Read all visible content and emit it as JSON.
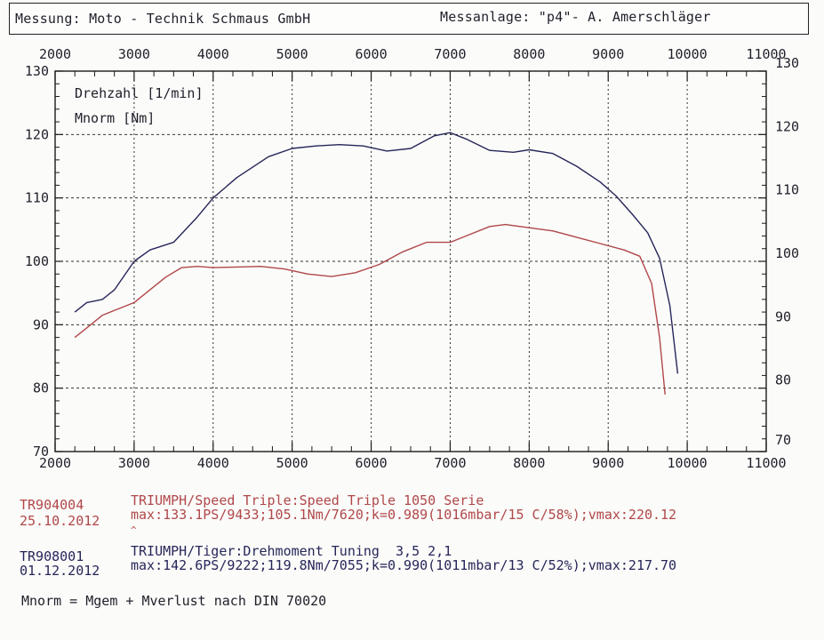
{
  "header": {
    "left": "Messung: Moto - Technik Schmaus GmbH",
    "right": "Messanlage: \"p4\"- A. Amerschläger"
  },
  "chart_data": {
    "type": "line",
    "legend": [
      "Drehzahl [1/min]",
      "Mnorm [Nm]"
    ],
    "legend_placement": "top-left",
    "grid": true,
    "xlim": [
      2000,
      11000
    ],
    "ylim": [
      70,
      130
    ],
    "x_ticks": [
      "2000",
      "3000",
      "4000",
      "5000",
      "6000",
      "7000",
      "8000",
      "9000",
      "10000",
      "11000"
    ],
    "y_left_ticks": [
      "70",
      "80",
      "90",
      "100",
      "110",
      "120",
      "130"
    ],
    "y_right_ticks": [
      "70",
      "80",
      "90",
      "100",
      "110",
      "120",
      "130"
    ],
    "series": [
      {
        "name": "TR908001",
        "color": "#26265a",
        "x": [
          2250,
          2400,
          2600,
          2750,
          3000,
          3200,
          3500,
          3800,
          4000,
          4300,
          4700,
          5000,
          5300,
          5600,
          5900,
          6200,
          6500,
          6800,
          7000,
          7200,
          7500,
          7800,
          8000,
          8300,
          8600,
          8900,
          9100,
          9300,
          9500,
          9650,
          9780,
          9880
        ],
        "y": [
          92,
          93.5,
          94,
          95.5,
          100,
          101.8,
          103,
          107,
          110,
          113.2,
          116.5,
          117.8,
          118.2,
          118.4,
          118.2,
          117.4,
          117.8,
          119.8,
          120.3,
          119.3,
          117.5,
          117.2,
          117.6,
          117,
          115,
          112.5,
          110.3,
          107.5,
          104.5,
          100.5,
          93,
          82.3
        ]
      },
      {
        "name": "TR904004",
        "color": "#b0474a",
        "x": [
          2250,
          2400,
          2600,
          2800,
          3000,
          3200,
          3400,
          3600,
          3800,
          4000,
          4300,
          4600,
          4900,
          5200,
          5500,
          5800,
          6100,
          6400,
          6700,
          7000,
          7200,
          7500,
          7700,
          8000,
          8300,
          8600,
          8900,
          9200,
          9400,
          9550,
          9650,
          9720
        ],
        "y": [
          88,
          89.5,
          91.5,
          92.5,
          93.5,
          95.5,
          97.5,
          99,
          99.2,
          99,
          99.1,
          99.2,
          98.8,
          98,
          97.6,
          98.2,
          99.5,
          101.5,
          103,
          103,
          104,
          105.5,
          105.8,
          105.3,
          104.8,
          103.8,
          102.8,
          101.8,
          100.8,
          96.5,
          88,
          79
        ]
      }
    ]
  },
  "runs": [
    {
      "id": "TR904004",
      "date": "25.10.2012",
      "title": "TRIUMPH/Speed Triple:Speed Triple 1050 Serie",
      "stats": "max:133.1PS/9433;105.1Nm/7620;k=0.989(1016mbar/15 C/58%);vmax:220.12",
      "color": "#b0474a"
    },
    {
      "id": "TR908001",
      "date": "01.12.2012",
      "title": "TRIUMPH/Tiger:Drehmoment Tuning  3,5 2,1",
      "stats": "max:142.6PS/9222;119.8Nm/7055;k=0.990(1011mbar/13 C/52%);vmax:217.70",
      "color": "#26265a"
    }
  ],
  "caret": "^",
  "footnote": "Mnorm = Mgem + Mverlust nach DIN 70020"
}
